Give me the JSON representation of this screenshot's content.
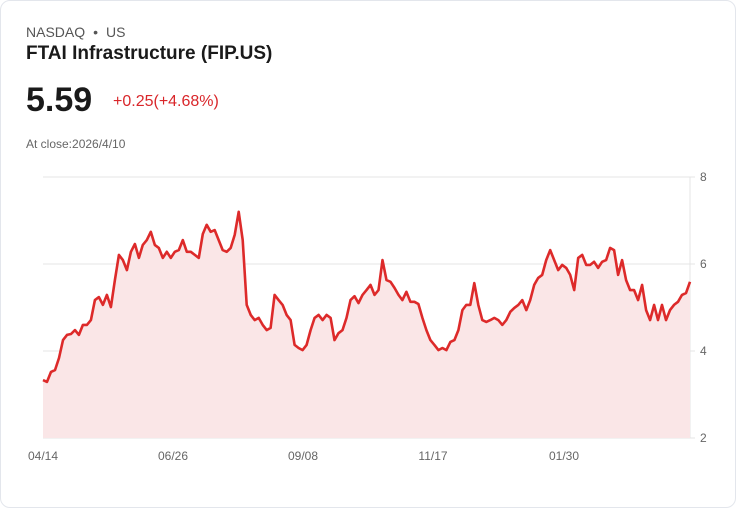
{
  "header": {
    "exchange": "NASDAQ",
    "separator": "•",
    "region": "US",
    "title": "FTAI Infrastructure (FIP.US)",
    "price": "5.59",
    "change": "+0.25(+4.68%)",
    "close_label": "At close:2026/4/10"
  },
  "colors": {
    "line": "#dd2a2a",
    "fill": "#fae6e7",
    "grid": "#e4e4e4",
    "change": "#d9262a"
  },
  "chart_data": {
    "type": "area",
    "title": "FTAI Infrastructure (FIP.US)",
    "xlabel": "",
    "ylabel": "",
    "ylim": [
      2,
      8
    ],
    "yticks": [
      "2",
      "4",
      "6",
      "8"
    ],
    "xticks": [
      "04/14",
      "06/26",
      "09/08",
      "11/17",
      "01/30"
    ],
    "grid": true,
    "values": [
      3.33,
      3.29,
      3.52,
      3.56,
      3.84,
      4.25,
      4.37,
      4.39,
      4.48,
      4.37,
      4.6,
      4.6,
      4.71,
      5.17,
      5.24,
      5.06,
      5.29,
      5.01,
      5.63,
      6.21,
      6.09,
      5.86,
      6.28,
      6.46,
      6.14,
      6.44,
      6.55,
      6.74,
      6.44,
      6.37,
      6.14,
      6.28,
      6.14,
      6.28,
      6.32,
      6.55,
      6.28,
      6.28,
      6.21,
      6.14,
      6.69,
      6.9,
      6.74,
      6.78,
      6.55,
      6.32,
      6.28,
      6.37,
      6.67,
      7.2,
      6.55,
      5.06,
      4.83,
      4.71,
      4.76,
      4.6,
      4.48,
      4.53,
      5.29,
      5.17,
      5.06,
      4.83,
      4.71,
      4.14,
      4.07,
      4.02,
      4.14,
      4.48,
      4.76,
      4.83,
      4.71,
      4.83,
      4.76,
      4.25,
      4.41,
      4.48,
      4.76,
      5.17,
      5.26,
      5.1,
      5.29,
      5.4,
      5.52,
      5.29,
      5.4,
      6.09,
      5.63,
      5.59,
      5.45,
      5.29,
      5.17,
      5.36,
      5.13,
      5.13,
      5.08,
      4.76,
      4.48,
      4.25,
      4.14,
      4.02,
      4.07,
      4.02,
      4.21,
      4.25,
      4.48,
      4.94,
      5.06,
      5.06,
      5.56,
      5.06,
      4.71,
      4.67,
      4.71,
      4.76,
      4.71,
      4.6,
      4.71,
      4.9,
      4.99,
      5.06,
      5.17,
      4.94,
      5.17,
      5.52,
      5.68,
      5.75,
      6.09,
      6.32,
      6.09,
      5.86,
      5.98,
      5.91,
      5.75,
      5.4,
      6.14,
      6.21,
      5.98,
      5.98,
      6.05,
      5.91,
      6.05,
      6.09,
      6.37,
      6.32,
      5.75,
      6.09,
      5.63,
      5.4,
      5.4,
      5.17,
      5.52,
      4.94,
      4.71,
      5.06,
      4.71,
      5.06,
      4.71,
      4.94,
      5.06,
      5.13,
      5.29,
      5.33,
      5.59
    ]
  }
}
